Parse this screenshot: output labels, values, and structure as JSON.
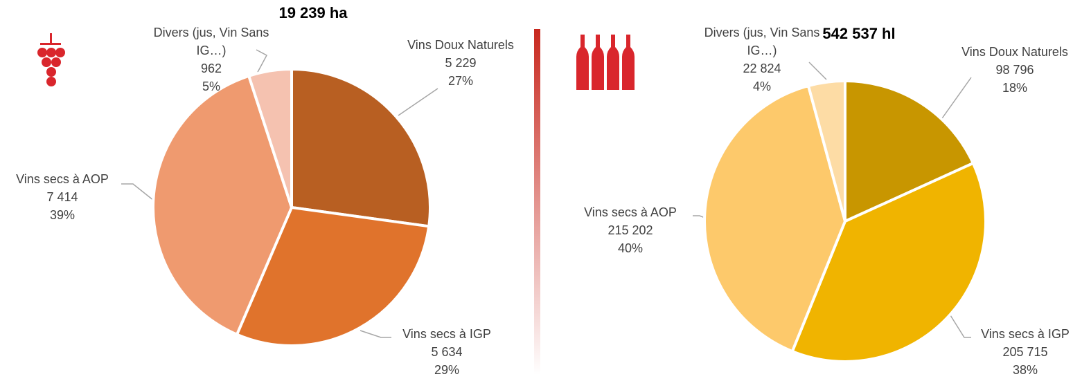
{
  "chart_data": [
    {
      "type": "pie",
      "title": "19 239 ha",
      "categories": [
        "Vins Doux Naturels",
        "Vins secs à IGP",
        "Vins secs à AOP",
        "Divers (jus, Vin Sans IG…)"
      ],
      "values": [
        5229,
        5634,
        7414,
        962
      ],
      "value_labels": [
        "5 229",
        "5 634",
        "7 414",
        "962"
      ],
      "percent_labels": [
        "27%",
        "29%",
        "39%",
        "5%"
      ],
      "colors": [
        "#b85f22",
        "#e0732c",
        "#ef9a6f",
        "#f5c2b0"
      ]
    },
    {
      "type": "pie",
      "title": "542 537 hl",
      "categories": [
        "Vins Doux Naturels",
        "Vins secs à IGP",
        "Vins secs à AOP",
        "Divers (jus, Vin Sans IG…)"
      ],
      "values": [
        98796,
        205715,
        215202,
        22824
      ],
      "value_labels": [
        "98 796",
        "205 715",
        "215 202",
        "22 824"
      ],
      "percent_labels": [
        "18%",
        "38%",
        "40%",
        "4%"
      ],
      "colors": [
        "#c89600",
        "#f0b400",
        "#fdc96b",
        "#fddca5"
      ]
    }
  ]
}
